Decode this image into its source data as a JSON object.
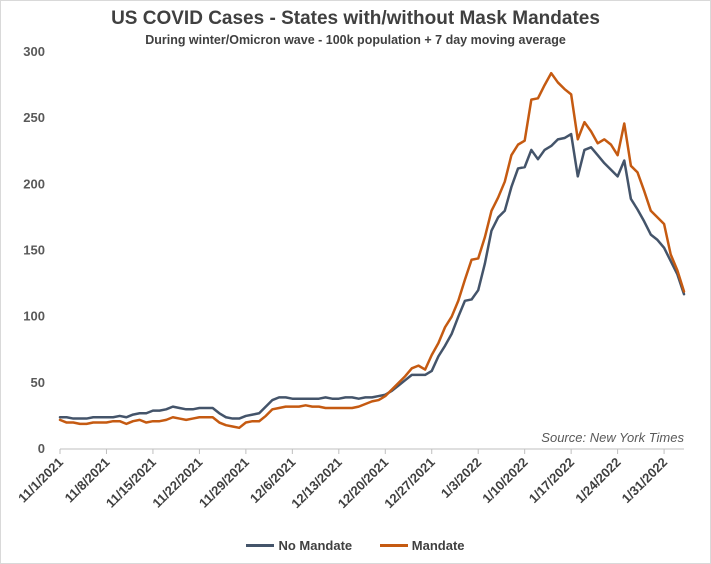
{
  "chart_data": {
    "type": "line",
    "title": "US COVID Cases - States with/without Mask Mandates",
    "subtitle": "During winter/Omicron wave - 100k population + 7 day moving average",
    "xlabel": "",
    "ylabel": "",
    "ylim": [
      0,
      300
    ],
    "yticks": [
      "0",
      "50",
      "100",
      "150",
      "200",
      "250",
      "300"
    ],
    "grid": false,
    "legend_position": "bottom",
    "source": "Source: New York Times",
    "xticks": [
      {
        "label": "11/1/2021",
        "day": 0
      },
      {
        "label": "11/8/2021",
        "day": 7
      },
      {
        "label": "11/15/2021",
        "day": 14
      },
      {
        "label": "11/22/2021",
        "day": 21
      },
      {
        "label": "11/29/2021",
        "day": 28
      },
      {
        "label": "12/6/2021",
        "day": 35
      },
      {
        "label": "12/13/2021",
        "day": 42
      },
      {
        "label": "12/20/2021",
        "day": 49
      },
      {
        "label": "12/27/2021",
        "day": 56
      },
      {
        "label": "1/3/2022",
        "day": 63
      },
      {
        "label": "1/10/2022",
        "day": 70
      },
      {
        "label": "1/17/2022",
        "day": 77
      },
      {
        "label": "1/24/2022",
        "day": 84
      },
      {
        "label": "1/31/2022",
        "day": 91
      }
    ],
    "series": [
      {
        "name": "No Mandate",
        "color": "#44546a",
        "points": [
          [
            0,
            24
          ],
          [
            1,
            24
          ],
          [
            2,
            23
          ],
          [
            3,
            23
          ],
          [
            4,
            23
          ],
          [
            5,
            24
          ],
          [
            6,
            24
          ],
          [
            7,
            24
          ],
          [
            8,
            24
          ],
          [
            9,
            25
          ],
          [
            10,
            24
          ],
          [
            11,
            26
          ],
          [
            12,
            27
          ],
          [
            13,
            27
          ],
          [
            14,
            29
          ],
          [
            15,
            29
          ],
          [
            16,
            30
          ],
          [
            17,
            32
          ],
          [
            18,
            31
          ],
          [
            19,
            30
          ],
          [
            20,
            30
          ],
          [
            21,
            31
          ],
          [
            22,
            31
          ],
          [
            23,
            31
          ],
          [
            24,
            27
          ],
          [
            25,
            24
          ],
          [
            26,
            23
          ],
          [
            27,
            23
          ],
          [
            28,
            25
          ],
          [
            29,
            26
          ],
          [
            30,
            27
          ],
          [
            31,
            32
          ],
          [
            32,
            37
          ],
          [
            33,
            39
          ],
          [
            34,
            39
          ],
          [
            35,
            38
          ],
          [
            36,
            38
          ],
          [
            37,
            38
          ],
          [
            38,
            38
          ],
          [
            39,
            38
          ],
          [
            40,
            39
          ],
          [
            41,
            38
          ],
          [
            42,
            38
          ],
          [
            43,
            39
          ],
          [
            44,
            39
          ],
          [
            45,
            38
          ],
          [
            46,
            39
          ],
          [
            47,
            39
          ],
          [
            48,
            40
          ],
          [
            49,
            41
          ],
          [
            50,
            44
          ],
          [
            51,
            48
          ],
          [
            52,
            52
          ],
          [
            53,
            56
          ],
          [
            54,
            56
          ],
          [
            55,
            56
          ],
          [
            56,
            59
          ],
          [
            57,
            70
          ],
          [
            58,
            78
          ],
          [
            59,
            87
          ],
          [
            60,
            100
          ],
          [
            61,
            112
          ],
          [
            62,
            113
          ],
          [
            63,
            120
          ],
          [
            64,
            140
          ],
          [
            65,
            165
          ],
          [
            66,
            175
          ],
          [
            67,
            180
          ],
          [
            68,
            198
          ],
          [
            69,
            212
          ],
          [
            70,
            213
          ],
          [
            71,
            226
          ],
          [
            72,
            219
          ],
          [
            73,
            226
          ],
          [
            74,
            229
          ],
          [
            75,
            234
          ],
          [
            76,
            235
          ],
          [
            77,
            238
          ],
          [
            78,
            206
          ],
          [
            79,
            226
          ],
          [
            80,
            228
          ],
          [
            81,
            222
          ],
          [
            82,
            216
          ],
          [
            83,
            211
          ],
          [
            84,
            206
          ],
          [
            85,
            218
          ],
          [
            86,
            189
          ],
          [
            87,
            181
          ],
          [
            88,
            172
          ],
          [
            89,
            162
          ],
          [
            90,
            158
          ],
          [
            91,
            152
          ],
          [
            92,
            142
          ],
          [
            93,
            132
          ],
          [
            94,
            117
          ]
        ]
      },
      {
        "name": "Mandate",
        "color": "#c55a11",
        "points": [
          [
            0,
            22
          ],
          [
            1,
            20
          ],
          [
            2,
            20
          ],
          [
            3,
            19
          ],
          [
            4,
            19
          ],
          [
            5,
            20
          ],
          [
            6,
            20
          ],
          [
            7,
            20
          ],
          [
            8,
            21
          ],
          [
            9,
            21
          ],
          [
            10,
            19
          ],
          [
            11,
            21
          ],
          [
            12,
            22
          ],
          [
            13,
            20
          ],
          [
            14,
            21
          ],
          [
            15,
            21
          ],
          [
            16,
            22
          ],
          [
            17,
            24
          ],
          [
            18,
            23
          ],
          [
            19,
            22
          ],
          [
            20,
            23
          ],
          [
            21,
            24
          ],
          [
            22,
            24
          ],
          [
            23,
            24
          ],
          [
            24,
            20
          ],
          [
            25,
            18
          ],
          [
            26,
            17
          ],
          [
            27,
            16
          ],
          [
            28,
            20
          ],
          [
            29,
            21
          ],
          [
            30,
            21
          ],
          [
            31,
            25
          ],
          [
            32,
            30
          ],
          [
            33,
            31
          ],
          [
            34,
            32
          ],
          [
            35,
            32
          ],
          [
            36,
            32
          ],
          [
            37,
            33
          ],
          [
            38,
            32
          ],
          [
            39,
            32
          ],
          [
            40,
            31
          ],
          [
            41,
            31
          ],
          [
            42,
            31
          ],
          [
            43,
            31
          ],
          [
            44,
            31
          ],
          [
            45,
            32
          ],
          [
            46,
            34
          ],
          [
            47,
            36
          ],
          [
            48,
            37
          ],
          [
            49,
            40
          ],
          [
            50,
            45
          ],
          [
            51,
            50
          ],
          [
            52,
            55
          ],
          [
            53,
            61
          ],
          [
            54,
            63
          ],
          [
            55,
            60
          ],
          [
            56,
            71
          ],
          [
            57,
            80
          ],
          [
            58,
            92
          ],
          [
            59,
            100
          ],
          [
            60,
            112
          ],
          [
            61,
            128
          ],
          [
            62,
            143
          ],
          [
            63,
            144
          ],
          [
            64,
            160
          ],
          [
            65,
            180
          ],
          [
            66,
            190
          ],
          [
            67,
            202
          ],
          [
            68,
            222
          ],
          [
            69,
            230
          ],
          [
            70,
            233
          ],
          [
            71,
            264
          ],
          [
            72,
            265
          ],
          [
            73,
            275
          ],
          [
            74,
            284
          ],
          [
            75,
            277
          ],
          [
            76,
            272
          ],
          [
            77,
            268
          ],
          [
            78,
            234
          ],
          [
            79,
            247
          ],
          [
            80,
            240
          ],
          [
            81,
            231
          ],
          [
            82,
            234
          ],
          [
            83,
            230
          ],
          [
            84,
            222
          ],
          [
            85,
            246
          ],
          [
            86,
            214
          ],
          [
            87,
            209
          ],
          [
            88,
            195
          ],
          [
            89,
            180
          ],
          [
            90,
            175
          ],
          [
            91,
            170
          ],
          [
            92,
            147
          ],
          [
            93,
            135
          ],
          [
            94,
            119
          ]
        ]
      }
    ]
  }
}
